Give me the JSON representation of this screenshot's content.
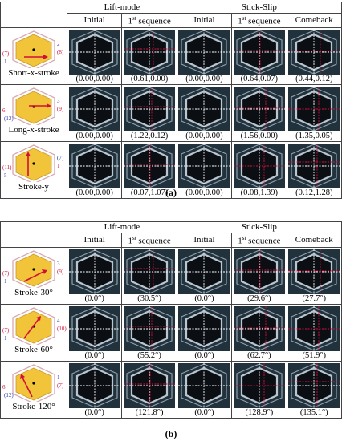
{
  "panel_a": {
    "headers": {
      "lift_mode": "Lift-mode",
      "stick_slip": "Stick-Slip",
      "initial": "Initial",
      "first_sequence": "1st sequence",
      "comeback": "Comeback"
    },
    "rows": [
      {
        "label": "Short-x-stroke",
        "values": [
          "(0.00,0.00)",
          "(0.61,0.00)",
          "(0.00,0.00)",
          "(0.64,0.07)",
          "(0.44,0.12)"
        ],
        "numbers": {
          "a": "(7)",
          "b": "1",
          "c": "2",
          "d": "(8)"
        }
      },
      {
        "label": "Long-x-stroke",
        "values": [
          "(0.00,0.00)",
          "(1.22,0.12)",
          "(0.00,0.00)",
          "(1.56,0.00)",
          "(1.35,0.05)"
        ],
        "numbers": {
          "a": "6",
          "b": "(12)",
          "c": "3",
          "d": "(9)"
        }
      },
      {
        "label": "Stroke-y",
        "values": [
          "(0.00,0.00)",
          "(0.07,1.07)",
          "(0.00,0.00)",
          "(0.08,1.39)",
          "(0.12,1.28)"
        ],
        "numbers": {
          "a": "(11)",
          "b": "5",
          "c": "(7)",
          "d": "1"
        }
      }
    ],
    "caption": "(a)"
  },
  "panel_b": {
    "headers": {
      "lift_mode": "Lift-mode",
      "stick_slip": "Stick-Slip",
      "initial": "Initial",
      "first_sequence": "1st sequence",
      "comeback": "Comeback"
    },
    "rows": [
      {
        "label": "Stroke-30°",
        "values": [
          "(0.0°)",
          "(30.5°)",
          "(0.0°)",
          "(29.6°)",
          "(27.7°)"
        ],
        "numbers": {
          "a": "(7)",
          "b": "1",
          "c": "3",
          "d": "(9)"
        }
      },
      {
        "label": "Stroke-60°",
        "values": [
          "(0.0°)",
          "(55.2°)",
          "(0.0°)",
          "(62.7°)",
          "(51.9°)"
        ],
        "numbers": {
          "a": "(7)",
          "b": "1",
          "c": "4",
          "d": "(10)"
        }
      },
      {
        "label": "Stroke-120°",
        "values": [
          "(0.0°)",
          "(121.8°)",
          "(0.0°)",
          "(128.9°)",
          "(135.1°)"
        ],
        "numbers": {
          "a": "6",
          "b": "(12)",
          "c": "1",
          "d": "(7)"
        }
      }
    ],
    "caption": "(b)"
  },
  "colors": {
    "hexagon_fill": "#f2c43a",
    "hexagon_border": "#d9a8b0",
    "arrow": "#d0103a",
    "guide_white": "#ffffff",
    "guide_red": "#d0103a"
  }
}
